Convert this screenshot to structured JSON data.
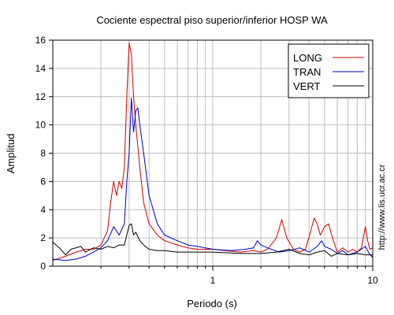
{
  "chart_data": {
    "type": "line",
    "title": "Cociente espectral piso superior/inferior  HOSP WA",
    "xlabel": "Periodo (s)",
    "ylabel": "Amplitud",
    "xscale": "log",
    "xlim": [
      0.1,
      10
    ],
    "ylim": [
      0,
      16
    ],
    "x_tick_labels": [
      "1",
      "10"
    ],
    "y_ticks": [
      0,
      2,
      4,
      6,
      8,
      10,
      12,
      14,
      16
    ],
    "grid": true,
    "legend_position": "top-right",
    "side_text": "http://www.lis.ucr.ac.cr",
    "series": [
      {
        "name": "LONG",
        "color": "#cc0000",
        "points": [
          [
            0.1,
            0.4
          ],
          [
            0.12,
            0.7
          ],
          [
            0.14,
            1.0
          ],
          [
            0.16,
            1.2
          ],
          [
            0.18,
            1.2
          ],
          [
            0.2,
            1.5
          ],
          [
            0.22,
            2.5
          ],
          [
            0.23,
            4.5
          ],
          [
            0.24,
            6.0
          ],
          [
            0.25,
            5.0
          ],
          [
            0.26,
            6.0
          ],
          [
            0.27,
            5.5
          ],
          [
            0.28,
            7.0
          ],
          [
            0.29,
            12.0
          ],
          [
            0.3,
            15.8
          ],
          [
            0.31,
            15.0
          ],
          [
            0.32,
            12.0
          ],
          [
            0.33,
            10.0
          ],
          [
            0.35,
            7.0
          ],
          [
            0.37,
            4.5
          ],
          [
            0.4,
            3.0
          ],
          [
            0.45,
            2.2
          ],
          [
            0.5,
            1.8
          ],
          [
            0.6,
            1.5
          ],
          [
            0.7,
            1.3
          ],
          [
            0.8,
            1.2
          ],
          [
            1.0,
            1.2
          ],
          [
            1.2,
            1.1
          ],
          [
            1.5,
            1.0
          ],
          [
            1.8,
            1.1
          ],
          [
            2.0,
            1.0
          ],
          [
            2.2,
            1.2
          ],
          [
            2.5,
            2.0
          ],
          [
            2.7,
            3.3
          ],
          [
            2.9,
            2.0
          ],
          [
            3.2,
            1.2
          ],
          [
            3.5,
            1.0
          ],
          [
            3.8,
            1.2
          ],
          [
            4.1,
            2.5
          ],
          [
            4.3,
            3.4
          ],
          [
            4.5,
            3.0
          ],
          [
            4.7,
            2.2
          ],
          [
            5.0,
            2.8
          ],
          [
            5.3,
            3.0
          ],
          [
            5.6,
            2.0
          ],
          [
            6.0,
            1.0
          ],
          [
            6.5,
            1.3
          ],
          [
            7.0,
            1.0
          ],
          [
            7.5,
            1.2
          ],
          [
            8.0,
            1.0
          ],
          [
            8.5,
            1.3
          ],
          [
            9.0,
            2.8
          ],
          [
            9.3,
            1.8
          ],
          [
            9.6,
            1.2
          ],
          [
            10.0,
            1.3
          ]
        ]
      },
      {
        "name": "TRAN",
        "color": "#0000bb",
        "points": [
          [
            0.1,
            0.5
          ],
          [
            0.12,
            0.4
          ],
          [
            0.14,
            0.5
          ],
          [
            0.16,
            0.7
          ],
          [
            0.18,
            1.0
          ],
          [
            0.2,
            1.3
          ],
          [
            0.22,
            1.8
          ],
          [
            0.24,
            2.8
          ],
          [
            0.26,
            2.2
          ],
          [
            0.28,
            3.0
          ],
          [
            0.29,
            6.0
          ],
          [
            0.3,
            8.0
          ],
          [
            0.31,
            11.9
          ],
          [
            0.32,
            9.5
          ],
          [
            0.33,
            11.0
          ],
          [
            0.34,
            11.2
          ],
          [
            0.35,
            10.0
          ],
          [
            0.37,
            8.0
          ],
          [
            0.4,
            5.0
          ],
          [
            0.45,
            3.0
          ],
          [
            0.5,
            2.2
          ],
          [
            0.6,
            1.8
          ],
          [
            0.7,
            1.5
          ],
          [
            0.8,
            1.4
          ],
          [
            1.0,
            1.2
          ],
          [
            1.3,
            1.1
          ],
          [
            1.6,
            1.2
          ],
          [
            1.8,
            1.3
          ],
          [
            1.9,
            1.8
          ],
          [
            2.0,
            1.5
          ],
          [
            2.2,
            1.3
          ],
          [
            2.6,
            1.0
          ],
          [
            3.0,
            1.1
          ],
          [
            3.5,
            1.3
          ],
          [
            4.0,
            1.0
          ],
          [
            4.5,
            1.4
          ],
          [
            4.8,
            1.8
          ],
          [
            5.0,
            1.4
          ],
          [
            5.5,
            1.2
          ],
          [
            6.0,
            0.9
          ],
          [
            6.5,
            1.1
          ],
          [
            7.0,
            0.8
          ],
          [
            8.0,
            1.0
          ],
          [
            9.0,
            1.4
          ],
          [
            9.5,
            0.9
          ],
          [
            10.0,
            0.6
          ]
        ]
      },
      {
        "name": "VERT",
        "color": "#000000",
        "points": [
          [
            0.1,
            1.7
          ],
          [
            0.11,
            1.3
          ],
          [
            0.12,
            0.8
          ],
          [
            0.13,
            1.2
          ],
          [
            0.15,
            1.4
          ],
          [
            0.16,
            1.0
          ],
          [
            0.18,
            1.3
          ],
          [
            0.2,
            1.2
          ],
          [
            0.22,
            1.4
          ],
          [
            0.24,
            1.3
          ],
          [
            0.26,
            1.5
          ],
          [
            0.28,
            1.5
          ],
          [
            0.3,
            2.9
          ],
          [
            0.31,
            3.0
          ],
          [
            0.32,
            2.2
          ],
          [
            0.33,
            2.4
          ],
          [
            0.35,
            1.8
          ],
          [
            0.37,
            1.5
          ],
          [
            0.4,
            1.2
          ],
          [
            0.45,
            1.1
          ],
          [
            0.5,
            1.1
          ],
          [
            0.6,
            1.0
          ],
          [
            0.7,
            1.0
          ],
          [
            1.0,
            1.0
          ],
          [
            1.5,
            0.9
          ],
          [
            2.0,
            0.9
          ],
          [
            2.5,
            1.0
          ],
          [
            3.0,
            1.2
          ],
          [
            3.5,
            0.9
          ],
          [
            4.0,
            0.8
          ],
          [
            4.5,
            1.0
          ],
          [
            5.0,
            1.1
          ],
          [
            5.5,
            0.7
          ],
          [
            6.0,
            0.9
          ],
          [
            7.0,
            0.8
          ],
          [
            8.0,
            0.9
          ],
          [
            9.0,
            0.8
          ],
          [
            10.0,
            0.8
          ]
        ]
      }
    ]
  }
}
